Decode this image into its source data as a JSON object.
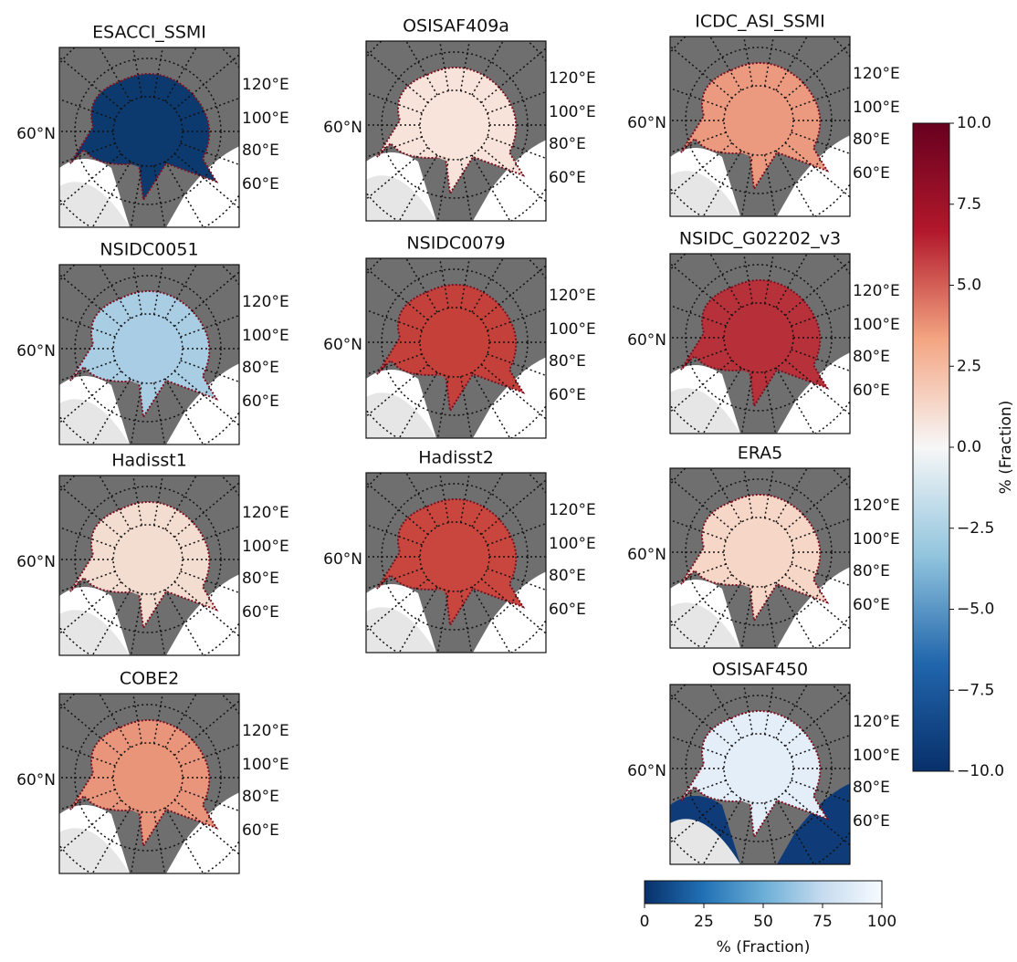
{
  "panels": [
    {
      "title": "ESACCI_SSMI",
      "lat_label": "60°N",
      "lon_labels": [
        "120°E",
        "100°E",
        "80°E",
        "60°E"
      ],
      "color": "#0d3a6e"
    },
    {
      "title": "NSIDC0051",
      "lat_label": "60°N",
      "lon_labels": [
        "120°E",
        "100°E",
        "80°E",
        "60°E"
      ],
      "color": "#a9cde3"
    },
    {
      "title": "Hadisst1",
      "lat_label": "60°N",
      "lon_labels": [
        "120°E",
        "100°E",
        "80°E",
        "60°E"
      ],
      "color": "#f3dcd0"
    },
    {
      "title": "COBE2",
      "lat_label": "60°N",
      "lon_labels": [
        "120°E",
        "100°E",
        "80°E",
        "60°E"
      ],
      "color": "#e9957b"
    },
    {
      "title": "OSISAF409a",
      "lat_label": "60°N",
      "lon_labels": [
        "120°E",
        "100°E",
        "80°E",
        "60°E"
      ],
      "color": "#f8e3da"
    },
    {
      "title": "NSIDC0079",
      "lat_label": "60°N",
      "lon_labels": [
        "120°E",
        "100°E",
        "80°E",
        "60°E"
      ],
      "color": "#c4403a"
    },
    {
      "title": "Hadisst2",
      "lat_label": "60°N",
      "lon_labels": [
        "120°E",
        "100°E",
        "80°E",
        "60°E"
      ],
      "color": "#c8463d"
    },
    {
      "title": "ICDC_ASI_SSMI",
      "lat_label": "60°N",
      "lon_labels": [
        "120°E",
        "100°E",
        "80°E",
        "60°E"
      ],
      "color": "#ec9a7f"
    },
    {
      "title": "NSIDC_G02202_v3",
      "lat_label": "60°N",
      "lon_labels": [
        "120°E",
        "100°E",
        "80°E",
        "60°E"
      ],
      "color": "#b7313a"
    },
    {
      "title": "ERA5",
      "lat_label": "60°N",
      "lon_labels": [
        "120°E",
        "100°E",
        "80°E",
        "60°E"
      ],
      "color": "#f6d6c6"
    },
    {
      "title": "OSISAF450",
      "lat_label": "60°N",
      "lon_labels": [
        "120°E",
        "100°E",
        "80°E",
        "60°E"
      ],
      "color": "#e4eef8",
      "ocean": "#0f3b78"
    }
  ],
  "colorbars": [
    {
      "label": "% (Fraction)",
      "orientation": "vertical",
      "lim": [
        -10,
        10
      ],
      "ticks": [
        {
          "value": -10,
          "label": "−10.0"
        },
        {
          "value": -7.5,
          "label": "−7.5"
        },
        {
          "value": -5,
          "label": "−5.0"
        },
        {
          "value": -2.5,
          "label": "−2.5"
        },
        {
          "value": 0,
          "label": "0.0"
        },
        2.5,
        {
          "value": 5,
          "label": "5.0"
        },
        7.5,
        {
          "value": 10,
          "label": "10.0"
        }
      ],
      "colors": [
        "#08306b",
        "#2166ac",
        "#92c5de",
        "#f7f7f7",
        "#f4a582",
        "#b2182b",
        "#67001f"
      ]
    },
    {
      "label": "% (Fraction)",
      "orientation": "horizontal",
      "lim": [
        0,
        100
      ],
      "ticks": [
        0,
        25,
        50,
        75,
        100
      ],
      "colors": [
        "#08306b",
        "#2171b5",
        "#6baed6",
        "#c6dbef",
        "#f7fbff"
      ]
    }
  ]
}
